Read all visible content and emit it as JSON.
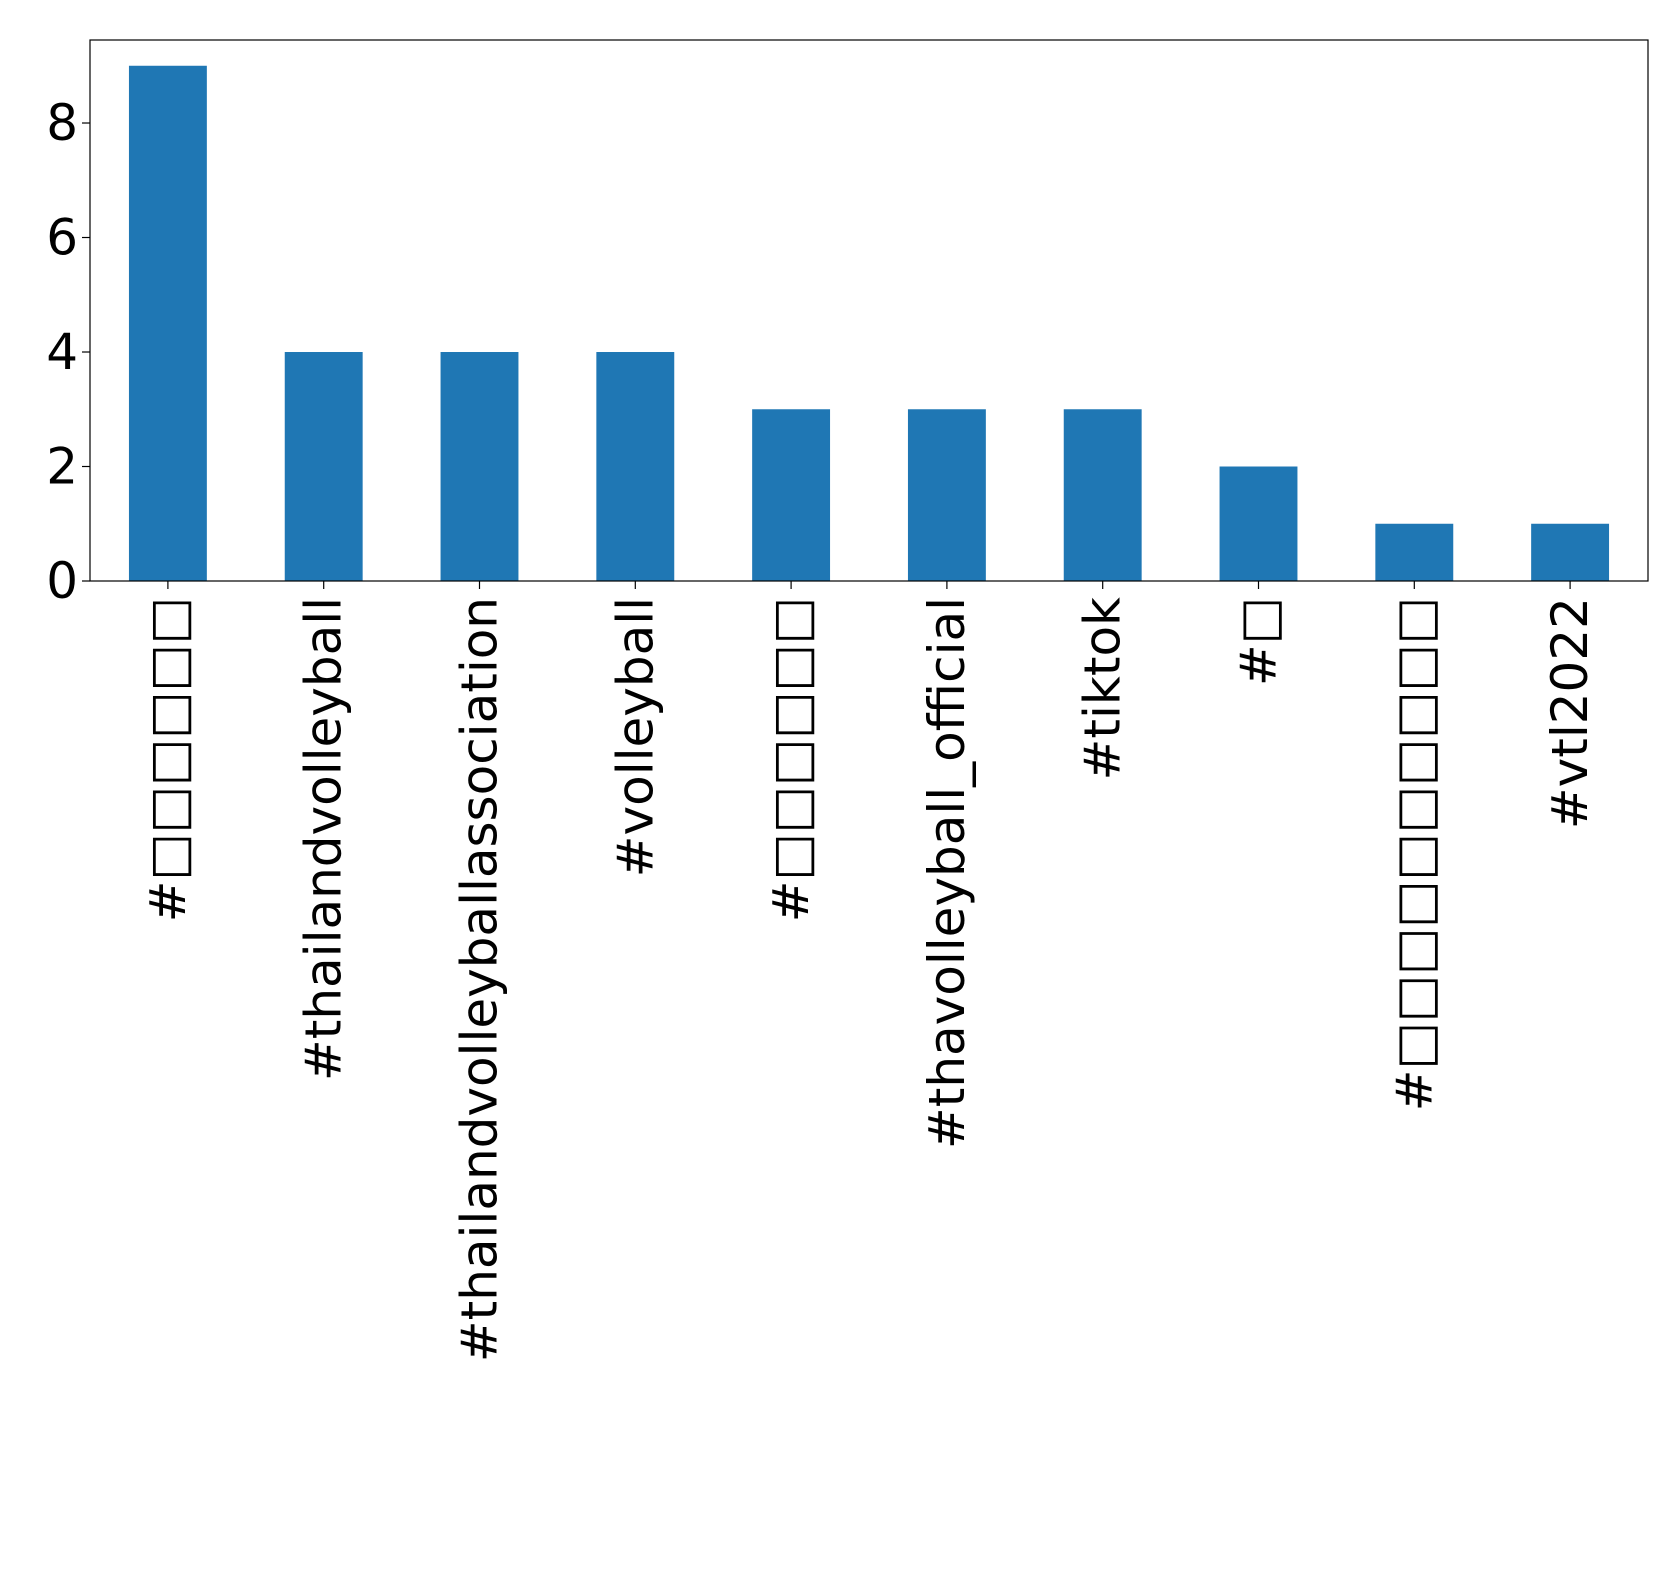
{
  "chart_data": {
    "type": "bar",
    "title": "",
    "xlabel": "",
    "ylabel": "",
    "categories": [
      "#□□□□□□",
      "#thailandvolleyball",
      "#thailandvolleyballassociation",
      "#volleyball",
      "#□□□□□□",
      "#thavolleyball_official",
      "#tiktok",
      "#□",
      "#□□□□□□□□□□",
      "#vtl2022"
    ],
    "values": [
      9,
      4,
      4,
      4,
      3,
      3,
      3,
      2,
      1,
      1
    ],
    "ylim": [
      0,
      9.45
    ],
    "yticks": [
      0,
      2,
      4,
      6,
      8
    ],
    "grid": false,
    "legend": "none",
    "bar_color": "#1f77b4",
    "axis_color": "#000000"
  }
}
